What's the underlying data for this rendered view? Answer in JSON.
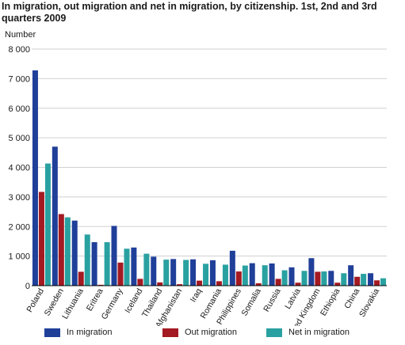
{
  "chart_data": {
    "type": "bar",
    "title": "In migration, out migration and net in migration, by citizenship. 1st, 2nd and 3rd quarters 2009",
    "ylabel": "Number",
    "xlabel": "",
    "ylim": [
      0,
      8000
    ],
    "yticks": [
      0,
      1000,
      2000,
      3000,
      4000,
      5000,
      6000,
      7000,
      8000
    ],
    "ytick_labels": [
      "0",
      "1 000",
      "2 000",
      "3 000",
      "4 000",
      "5 000",
      "6 000",
      "7 000",
      "8 000"
    ],
    "grid": true,
    "legend_position": "bottom",
    "categories": [
      "Poland",
      "Sweden",
      "Lithuania",
      "Eritrea",
      "Germany",
      "Iceland",
      "Thailand",
      "Afghanistan",
      "Iraq",
      "Romania",
      "Philippines",
      "Somalia",
      "Russia",
      "Latvia",
      "United Kingdom",
      "Ethiopia",
      "China",
      "Slovakia"
    ],
    "series": [
      {
        "name": "In migration",
        "color": "#1f3f99",
        "values": [
          7280,
          4700,
          2200,
          1470,
          2020,
          1290,
          980,
          900,
          890,
          860,
          1180,
          760,
          750,
          620,
          930,
          500,
          690,
          420
        ]
      },
      {
        "name": "Out migration",
        "color": "#a31a22",
        "values": [
          3170,
          2420,
          470,
          30,
          780,
          230,
          110,
          50,
          170,
          150,
          480,
          80,
          230,
          100,
          470,
          100,
          300,
          180
        ]
      },
      {
        "name": "Net in migration",
        "color": "#2aa1a1",
        "values": [
          4130,
          2310,
          1730,
          1470,
          1250,
          1080,
          880,
          870,
          740,
          710,
          680,
          690,
          520,
          500,
          480,
          420,
          400,
          250
        ]
      }
    ]
  }
}
